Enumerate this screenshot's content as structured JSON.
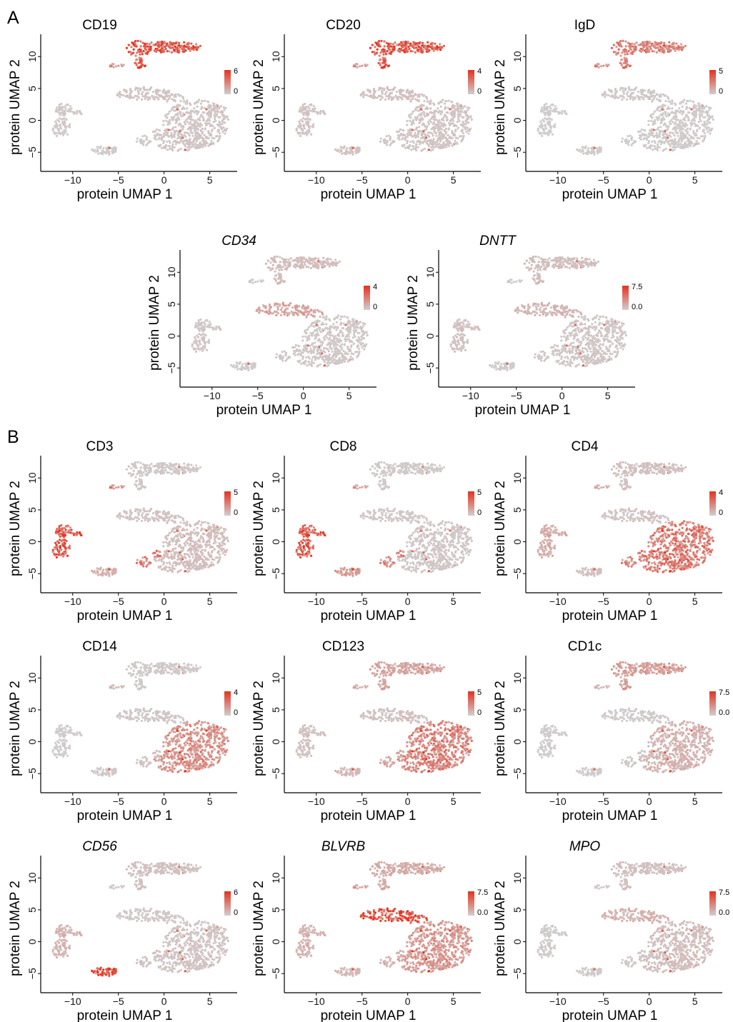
{
  "panel_labels": [
    "A",
    "B"
  ],
  "axis": {
    "xlabel": "protein UMAP 1",
    "ylabel": "protein UMAP 2",
    "x_ticks": [
      "−10",
      "−5",
      "0",
      "5"
    ],
    "y_ticks": [
      "10",
      "5",
      "0",
      "−5"
    ]
  },
  "colors": {
    "low": "#cfcfcf",
    "high": "#e8301c",
    "axis": "#000000"
  },
  "chart_data": [
    {
      "type": "scatter",
      "panel": "A",
      "title": "CD19",
      "italic": false,
      "legend_max": "6",
      "legend_min": "0",
      "xlabel": "protein UMAP 1",
      "ylabel": "protein UMAP 2",
      "xlim": [
        -13.5,
        8
      ],
      "ylim": [
        -8,
        13.5
      ],
      "hotspots": [
        "b-cell cluster"
      ]
    },
    {
      "type": "scatter",
      "panel": "A",
      "title": "CD20",
      "italic": false,
      "legend_max": "4",
      "legend_min": "0",
      "xlabel": "protein UMAP 1",
      "ylabel": "protein UMAP 2",
      "xlim": [
        -13.5,
        8
      ],
      "ylim": [
        -8,
        13.5
      ],
      "hotspots": [
        "b-cell cluster"
      ]
    },
    {
      "type": "scatter",
      "panel": "A",
      "title": "IgD",
      "italic": false,
      "legend_max": "5",
      "legend_min": "0",
      "xlabel": "protein UMAP 1",
      "ylabel": "protein UMAP 2",
      "xlim": [
        -13.5,
        8
      ],
      "ylim": [
        -8,
        13.5
      ],
      "hotspots": [
        "b-cell left half"
      ]
    },
    {
      "type": "scatter",
      "panel": "A",
      "title": "CD34",
      "italic": true,
      "legend_max": "4",
      "legend_min": "0",
      "xlabel": "protein UMAP 1",
      "ylabel": "protein UMAP 2",
      "xlim": [
        -13.5,
        8
      ],
      "ylim": [
        -8,
        13.5
      ],
      "hotspots": [
        "b-cell tip",
        "arm junction"
      ]
    },
    {
      "type": "scatter",
      "panel": "A",
      "title": "DNTT",
      "italic": true,
      "legend_max": "7.5",
      "legend_min": "0.0",
      "xlabel": "protein UMAP 1",
      "ylabel": "protein UMAP 2",
      "xlim": [
        -13.5,
        8
      ],
      "ylim": [
        -8,
        13.5
      ],
      "hotspots": [
        "b-cell tip"
      ]
    },
    {
      "type": "scatter",
      "panel": "B",
      "title": "CD3",
      "italic": false,
      "legend_max": "5",
      "legend_min": "0",
      "xlabel": "protein UMAP 1",
      "ylabel": "protein UMAP 2",
      "xlim": [
        -13.5,
        8
      ],
      "ylim": [
        -8,
        13.5
      ],
      "hotspots": [
        "t-cell cluster"
      ]
    },
    {
      "type": "scatter",
      "panel": "B",
      "title": "CD8",
      "italic": false,
      "legend_max": "5",
      "legend_min": "0",
      "xlabel": "protein UMAP 1",
      "ylabel": "protein UMAP 2",
      "xlim": [
        -13.5,
        8
      ],
      "ylim": [
        -8,
        13.5
      ],
      "hotspots": [
        "t-cell cluster"
      ]
    },
    {
      "type": "scatter",
      "panel": "B",
      "title": "CD4",
      "italic": false,
      "legend_max": "4",
      "legend_min": "0",
      "xlabel": "protein UMAP 1",
      "ylabel": "protein UMAP 2",
      "xlim": [
        -13.5,
        8
      ],
      "ylim": [
        -8,
        13.5
      ],
      "hotspots": [
        "main blob",
        "t-cell top"
      ]
    },
    {
      "type": "scatter",
      "panel": "B",
      "title": "CD14",
      "italic": false,
      "legend_max": "4",
      "legend_min": "0",
      "xlabel": "protein UMAP 1",
      "ylabel": "protein UMAP 2",
      "xlim": [
        -13.5,
        8
      ],
      "ylim": [
        -8,
        13.5
      ],
      "hotspots": [
        "main blob bottom"
      ]
    },
    {
      "type": "scatter",
      "panel": "B",
      "title": "CD123",
      "italic": false,
      "legend_max": "5",
      "legend_min": "0",
      "xlabel": "protein UMAP 1",
      "ylabel": "protein UMAP 2",
      "xlim": [
        -13.5,
        8
      ],
      "ylim": [
        -8,
        13.5
      ],
      "hotspots": [
        "main blob"
      ]
    },
    {
      "type": "scatter",
      "panel": "B",
      "title": "CD1c",
      "italic": false,
      "legend_max": "7.5",
      "legend_min": "0.0",
      "xlabel": "protein UMAP 1",
      "ylabel": "protein UMAP 2",
      "xlim": [
        -13.5,
        8
      ],
      "ylim": [
        -8,
        13.5
      ],
      "hotspots": [
        "main blob left",
        "b-cell left"
      ]
    },
    {
      "type": "scatter",
      "panel": "B",
      "title": "CD56",
      "italic": true,
      "legend_max": "6",
      "legend_min": "0",
      "xlabel": "protein UMAP 1",
      "ylabel": "protein UMAP 2",
      "xlim": [
        -13.5,
        8
      ],
      "ylim": [
        -8,
        13.5
      ],
      "hotspots": [
        "nk cluster"
      ]
    },
    {
      "type": "scatter",
      "panel": "B",
      "title": "BLVRB",
      "italic": true,
      "legend_max": "7.5",
      "legend_min": "0.0",
      "xlabel": "protein UMAP 1",
      "ylabel": "protein UMAP 2",
      "xlim": [
        -13.5,
        8
      ],
      "ylim": [
        -8,
        13.5
      ],
      "hotspots": [
        "arm",
        "main blob"
      ]
    },
    {
      "type": "scatter",
      "panel": "B",
      "title": "MPO",
      "italic": true,
      "legend_max": "7.5",
      "legend_min": "0.0",
      "xlabel": "protein UMAP 1",
      "ylabel": "protein UMAP 2",
      "xlim": [
        -13.5,
        8
      ],
      "ylim": [
        -8,
        13.5
      ],
      "hotspots": [
        "arm junction"
      ]
    }
  ]
}
